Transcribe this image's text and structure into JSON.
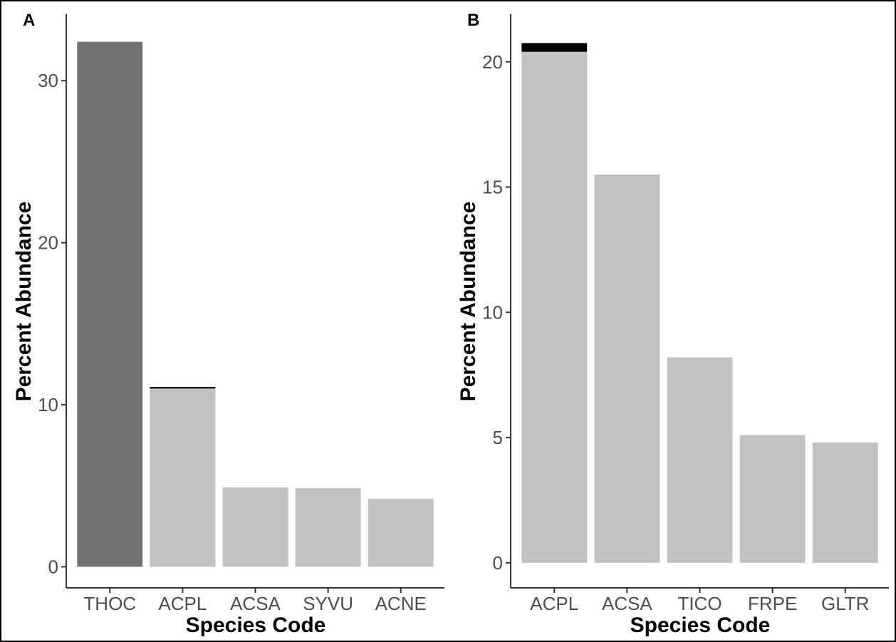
{
  "chart_data": [
    {
      "type": "bar",
      "panel_label": "A",
      "categories": [
        "THOC",
        "ACPL",
        "ACSA",
        "SYVU",
        "ACNE"
      ],
      "values": [
        32.4,
        11.0,
        4.9,
        4.85,
        4.2
      ],
      "error_upper": [
        null,
        11.1,
        null,
        null,
        null
      ],
      "bar_colors": [
        "#737373",
        "#c2c2c2",
        "#c2c2c2",
        "#c2c2c2",
        "#c2c2c2"
      ],
      "yticks": [
        "0",
        "10",
        "20",
        "30"
      ],
      "ylim": [
        -1.3,
        34.1
      ],
      "xlabel": "Species Code",
      "ylabel": "Percent Abundance",
      "grid": false
    },
    {
      "type": "bar",
      "panel_label": "B",
      "categories": [
        "ACPL",
        "ACSA",
        "TICO",
        "FRPE",
        "GLTR"
      ],
      "values": [
        20.4,
        15.5,
        8.2,
        5.1,
        4.8
      ],
      "error_upper": [
        20.75,
        null,
        null,
        null,
        null
      ],
      "bar_colors": [
        "#c2c2c2",
        "#c2c2c2",
        "#c2c2c2",
        "#c2c2c2",
        "#c2c2c2"
      ],
      "yticks": [
        "0",
        "5",
        "10",
        "15",
        "20"
      ],
      "ylim": [
        -1.0,
        21.9
      ],
      "xlabel": "Species Code",
      "ylabel": "Percent Abundance",
      "grid": false
    }
  ]
}
